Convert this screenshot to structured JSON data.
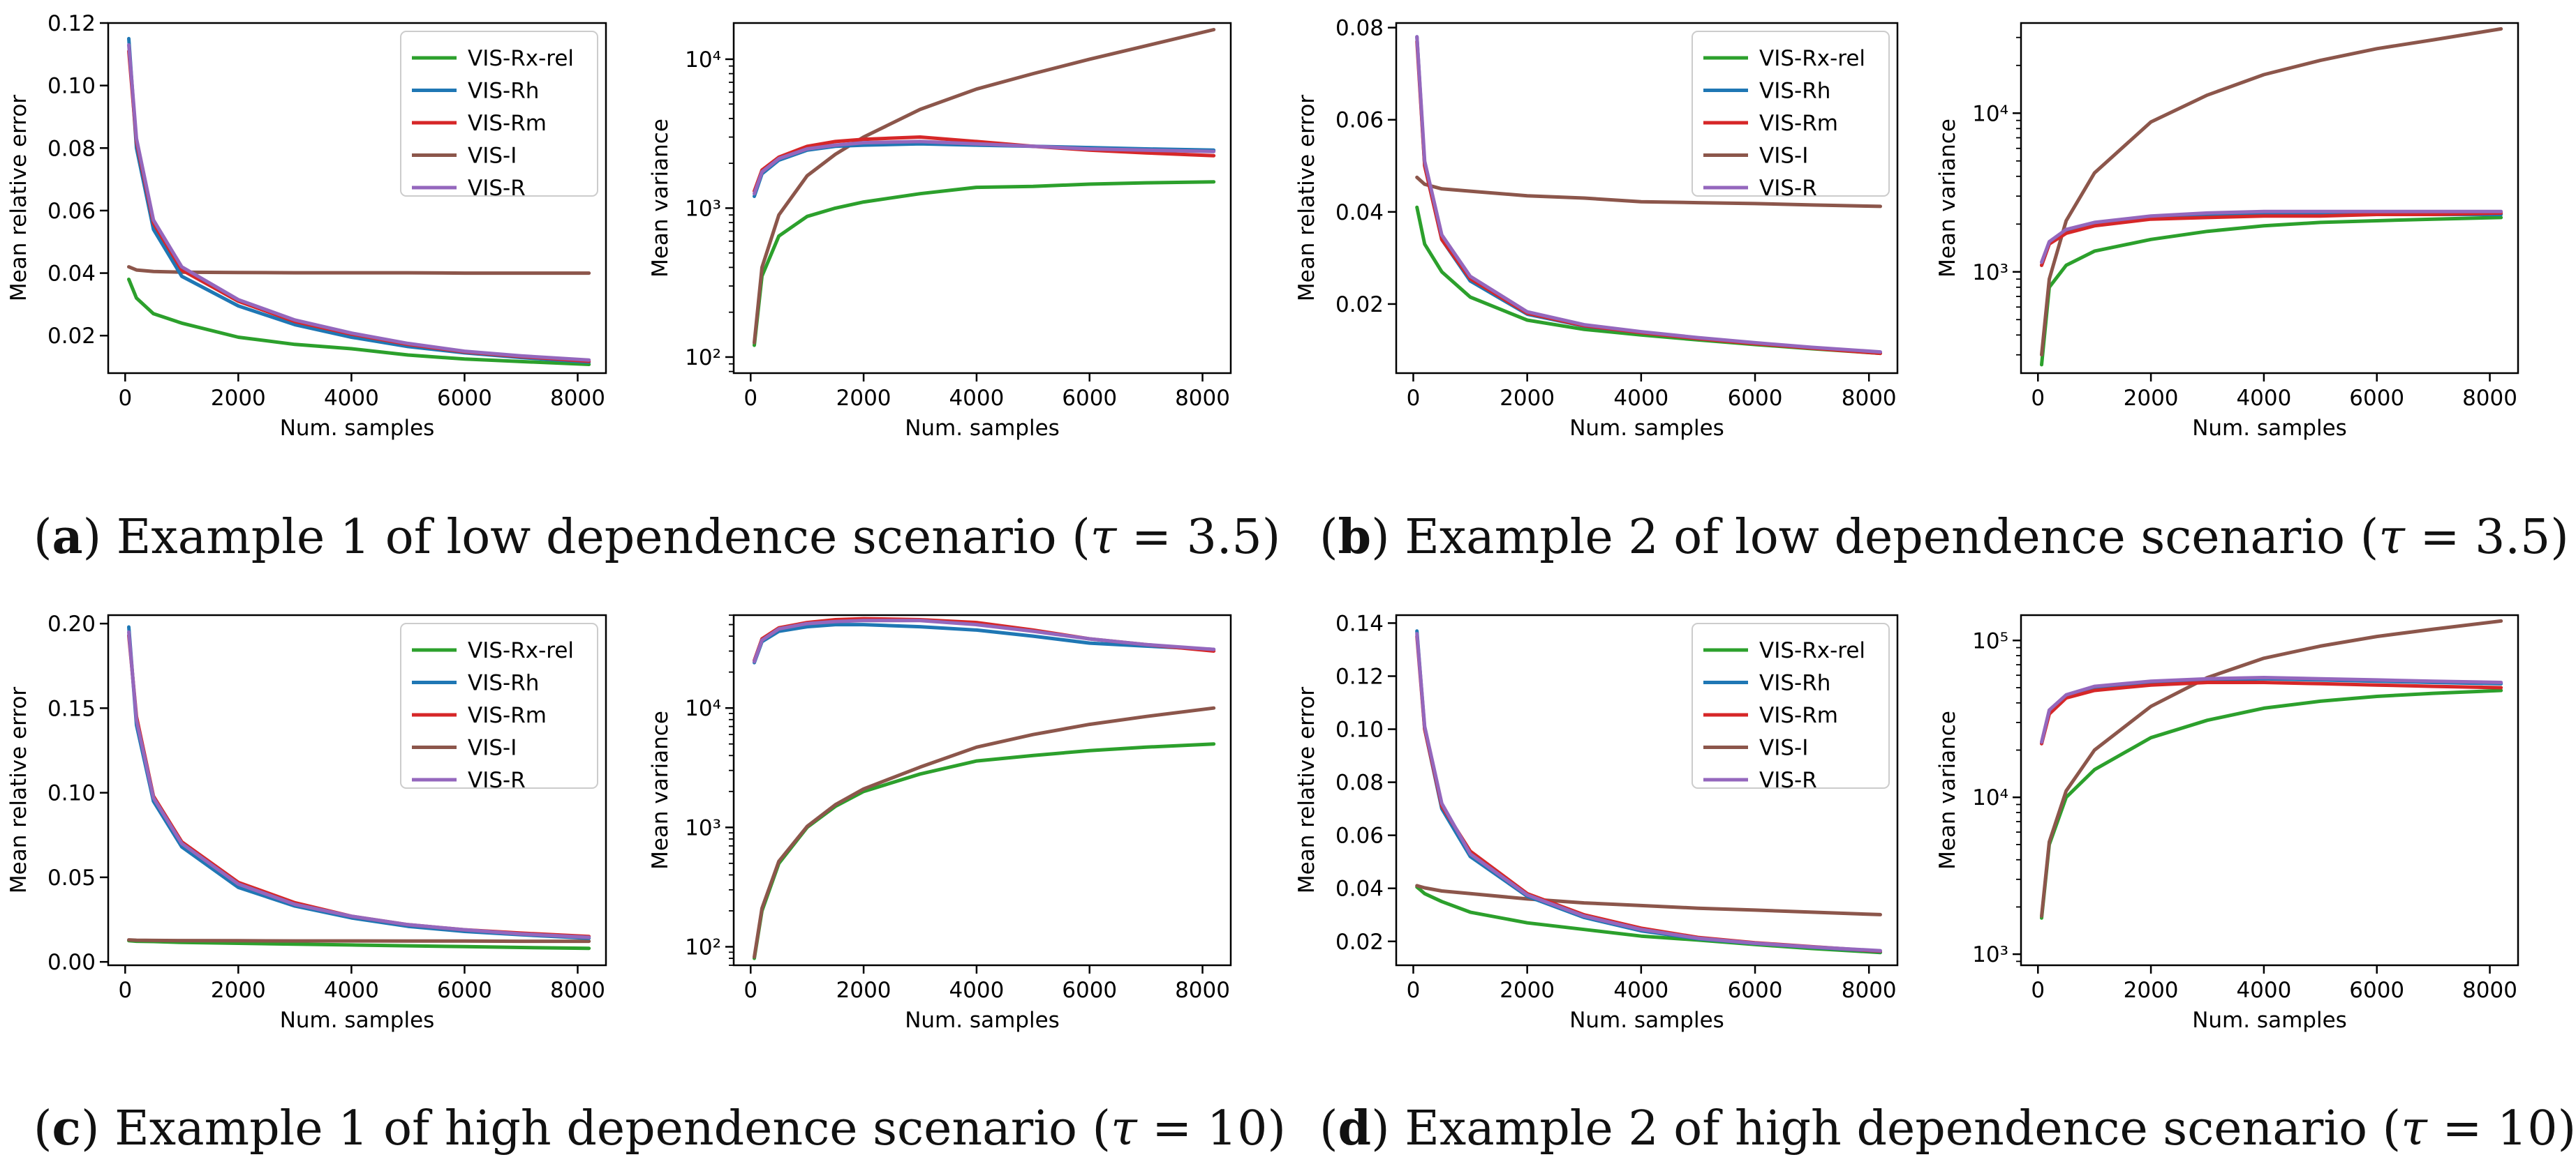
{
  "captions": [
    {
      "letter": "a",
      "prefix": "(",
      "close": ")",
      "text": " Example 1 of low dependence scenario (",
      "symbol": "τ",
      "value": " = 3.5)"
    },
    {
      "letter": "b",
      "prefix": "(",
      "close": ")",
      "text": " Example 2 of low dependence scenario (",
      "symbol": "τ",
      "value": " = 3.5)"
    },
    {
      "letter": "c",
      "prefix": "(",
      "close": ")",
      "text": " Example 1 of high dependence scenario (",
      "symbol": "τ",
      "value": " = 10)"
    },
    {
      "letter": "d",
      "prefix": "(",
      "close": ")",
      "text": " Example 2 of high dependence scenario (",
      "symbol": "τ",
      "value": " = 10)"
    }
  ],
  "series_style": [
    {
      "name": "VIS-Rx-rel",
      "color": "#2ca02c"
    },
    {
      "name": "VIS-Rh",
      "color": "#1f77b4"
    },
    {
      "name": "VIS-Rm",
      "color": "#d62728"
    },
    {
      "name": "VIS-I",
      "color": "#8c564b"
    },
    {
      "name": "VIS-R",
      "color": "#9467bd"
    }
  ],
  "chart_data": [
    {
      "id": "a-error",
      "type": "line",
      "xlabel": "Num. samples",
      "ylabel": "Mean relative error",
      "xlim": [
        -300,
        8500
      ],
      "xticks": [
        0,
        2000,
        4000,
        6000,
        8000
      ],
      "ylim": [
        0.008,
        0.12
      ],
      "yticks": [
        0.02,
        0.04,
        0.06,
        0.08,
        0.1,
        0.12
      ],
      "yticklabels": [
        "0.02",
        "0.04",
        "0.06",
        "0.08",
        "0.10",
        "0.12"
      ],
      "yscale": "linear",
      "legend": "top-right",
      "x": [
        64,
        200,
        500,
        1000,
        2000,
        3000,
        4000,
        5000,
        6000,
        7000,
        8200
      ],
      "series": [
        {
          "name": "VIS-Rx-rel",
          "values": [
            0.038,
            0.032,
            0.027,
            0.024,
            0.0195,
            0.0172,
            0.0158,
            0.0138,
            0.0125,
            0.0117,
            0.0108
          ]
        },
        {
          "name": "VIS-Rh",
          "values": [
            0.115,
            0.08,
            0.054,
            0.039,
            0.0295,
            0.0235,
            0.0195,
            0.0165,
            0.0145,
            0.013,
            0.0115
          ]
        },
        {
          "name": "VIS-Rm",
          "values": [
            0.111,
            0.082,
            0.056,
            0.041,
            0.031,
            0.0245,
            0.0205,
            0.0172,
            0.0148,
            0.0133,
            0.0118
          ]
        },
        {
          "name": "VIS-I",
          "values": [
            0.042,
            0.041,
            0.0405,
            0.0403,
            0.0402,
            0.0401,
            0.0401,
            0.0401,
            0.04,
            0.04,
            0.04
          ]
        },
        {
          "name": "VIS-R",
          "values": [
            0.113,
            0.083,
            0.057,
            0.042,
            0.0315,
            0.025,
            0.0208,
            0.0175,
            0.015,
            0.0135,
            0.0122
          ]
        }
      ]
    },
    {
      "id": "a-variance",
      "type": "line",
      "xlabel": "Num. samples",
      "ylabel": "Mean variance",
      "xlim": [
        -300,
        8500
      ],
      "xticks": [
        0,
        2000,
        4000,
        6000,
        8000
      ],
      "ylim": [
        78,
        17500
      ],
      "yticks": [
        100,
        1000,
        10000
      ],
      "yticklabels": [
        "10²",
        "10³",
        "10⁴"
      ],
      "yscale": "log",
      "x": [
        64,
        200,
        500,
        1000,
        1500,
        2000,
        3000,
        4000,
        5000,
        6000,
        7000,
        8200
      ],
      "series": [
        {
          "name": "VIS-Rx-rel",
          "values": [
            120,
            350,
            650,
            880,
            1000,
            1100,
            1250,
            1380,
            1400,
            1450,
            1480,
            1500
          ]
        },
        {
          "name": "VIS-Rh",
          "values": [
            1200,
            1700,
            2100,
            2450,
            2600,
            2650,
            2700,
            2650,
            2600,
            2550,
            2500,
            2450
          ]
        },
        {
          "name": "VIS-Rm",
          "values": [
            1300,
            1800,
            2200,
            2600,
            2800,
            2900,
            3000,
            2800,
            2600,
            2450,
            2350,
            2250
          ]
        },
        {
          "name": "VIS-I",
          "values": [
            125,
            400,
            900,
            1650,
            2300,
            3000,
            4600,
            6300,
            8000,
            10000,
            12300,
            15800
          ]
        },
        {
          "name": "VIS-R",
          "values": [
            1250,
            1750,
            2150,
            2500,
            2650,
            2750,
            2800,
            2700,
            2600,
            2500,
            2450,
            2400
          ]
        }
      ]
    },
    {
      "id": "b-error",
      "type": "line",
      "xlabel": "Num. samples",
      "ylabel": "Mean relative error",
      "xlim": [
        -300,
        8500
      ],
      "xticks": [
        0,
        2000,
        4000,
        6000,
        8000
      ],
      "ylim": [
        0.005,
        0.081
      ],
      "yticks": [
        0.02,
        0.04,
        0.06,
        0.08
      ],
      "yticklabels": [
        "0.02",
        "0.04",
        "0.06",
        "0.08"
      ],
      "yscale": "linear",
      "legend": "top-right",
      "x": [
        64,
        200,
        500,
        1000,
        2000,
        3000,
        4000,
        5000,
        6000,
        7000,
        8200
      ],
      "series": [
        {
          "name": "VIS-Rx-rel",
          "values": [
            0.041,
            0.033,
            0.027,
            0.0215,
            0.0165,
            0.0145,
            0.0133,
            0.0122,
            0.0112,
            0.0103,
            0.0093
          ]
        },
        {
          "name": "VIS-Rh",
          "values": [
            0.078,
            0.05,
            0.034,
            0.025,
            0.0178,
            0.0152,
            0.0138,
            0.0125,
            0.0115,
            0.0105,
            0.0095
          ]
        },
        {
          "name": "VIS-Rm",
          "values": [
            0.077,
            0.05,
            0.034,
            0.0255,
            0.018,
            0.0153,
            0.0138,
            0.0125,
            0.0114,
            0.0104,
            0.0093
          ]
        },
        {
          "name": "VIS-I",
          "values": [
            0.0475,
            0.046,
            0.045,
            0.0445,
            0.0435,
            0.043,
            0.0422,
            0.042,
            0.0418,
            0.0415,
            0.0412
          ]
        },
        {
          "name": "VIS-R",
          "values": [
            0.078,
            0.051,
            0.035,
            0.026,
            0.0183,
            0.0155,
            0.014,
            0.0127,
            0.0116,
            0.0106,
            0.0096
          ]
        }
      ]
    },
    {
      "id": "b-variance",
      "type": "line",
      "xlabel": "Num. samples",
      "ylabel": "Mean variance",
      "xlim": [
        -300,
        8500
      ],
      "xticks": [
        0,
        2000,
        4000,
        6000,
        8000
      ],
      "ylim": [
        230,
        37000
      ],
      "yticks": [
        1000,
        10000
      ],
      "yticklabels": [
        "10³",
        "10⁴"
      ],
      "yscale": "log",
      "x": [
        64,
        200,
        500,
        1000,
        2000,
        3000,
        4000,
        5000,
        6000,
        7000,
        8200
      ],
      "series": [
        {
          "name": "VIS-Rx-rel",
          "values": [
            260,
            800,
            1100,
            1350,
            1600,
            1800,
            1950,
            2050,
            2100,
            2150,
            2200
          ]
        },
        {
          "name": "VIS-Rh",
          "values": [
            1100,
            1500,
            1800,
            2000,
            2200,
            2250,
            2300,
            2300,
            2300,
            2300,
            2300
          ]
        },
        {
          "name": "VIS-Rm",
          "values": [
            1100,
            1500,
            1750,
            1950,
            2150,
            2200,
            2250,
            2250,
            2300,
            2300,
            2350
          ]
        },
        {
          "name": "VIS-I",
          "values": [
            300,
            900,
            2100,
            4200,
            8800,
            13000,
            17500,
            21500,
            25500,
            29000,
            34000
          ]
        },
        {
          "name": "VIS-R",
          "values": [
            1150,
            1550,
            1850,
            2050,
            2250,
            2350,
            2400,
            2400,
            2400,
            2400,
            2400
          ]
        }
      ]
    },
    {
      "id": "c-error",
      "type": "line",
      "xlabel": "Num. samples",
      "ylabel": "Mean relative error",
      "xlim": [
        -300,
        8500
      ],
      "xticks": [
        0,
        2000,
        4000,
        6000,
        8000
      ],
      "ylim": [
        -0.002,
        0.205
      ],
      "yticks": [
        0.0,
        0.05,
        0.1,
        0.15,
        0.2
      ],
      "yticklabels": [
        "0.00",
        "0.05",
        "0.10",
        "0.15",
        "0.20"
      ],
      "yscale": "linear",
      "legend": "top-right",
      "x": [
        64,
        200,
        500,
        1000,
        2000,
        3000,
        4000,
        5000,
        6000,
        7000,
        8200
      ],
      "series": [
        {
          "name": "VIS-Rx-rel",
          "values": [
            0.0125,
            0.0122,
            0.012,
            0.0115,
            0.011,
            0.0105,
            0.01,
            0.0095,
            0.009,
            0.0085,
            0.008
          ]
        },
        {
          "name": "VIS-Rh",
          "values": [
            0.198,
            0.14,
            0.095,
            0.068,
            0.044,
            0.033,
            0.026,
            0.021,
            0.018,
            0.016,
            0.014
          ]
        },
        {
          "name": "VIS-Rm",
          "values": [
            0.193,
            0.145,
            0.098,
            0.071,
            0.047,
            0.035,
            0.027,
            0.022,
            0.019,
            0.017,
            0.015
          ]
        },
        {
          "name": "VIS-I",
          "values": [
            0.013,
            0.0128,
            0.0127,
            0.0126,
            0.0125,
            0.0124,
            0.0124,
            0.0123,
            0.0123,
            0.0122,
            0.0122
          ]
        },
        {
          "name": "VIS-R",
          "values": [
            0.195,
            0.143,
            0.097,
            0.07,
            0.046,
            0.034,
            0.027,
            0.022,
            0.019,
            0.0165,
            0.0145
          ]
        }
      ]
    },
    {
      "id": "c-variance",
      "type": "line",
      "xlabel": "Num. samples",
      "ylabel": "Mean variance",
      "xlim": [
        -300,
        8500
      ],
      "xticks": [
        0,
        2000,
        4000,
        6000,
        8000
      ],
      "ylim": [
        70,
        60000
      ],
      "yticks": [
        100,
        1000,
        10000
      ],
      "yticklabels": [
        "10²",
        "10³",
        "10⁴"
      ],
      "yscale": "log",
      "x": [
        64,
        200,
        500,
        1000,
        1500,
        2000,
        3000,
        4000,
        5000,
        6000,
        7000,
        8200
      ],
      "series": [
        {
          "name": "VIS-Rx-rel",
          "values": [
            80,
            200,
            500,
            1000,
            1500,
            2000,
            2800,
            3600,
            4000,
            4400,
            4700,
            5000
          ]
        },
        {
          "name": "VIS-Rh",
          "values": [
            24000,
            36000,
            44000,
            48000,
            50000,
            50000,
            48000,
            45000,
            40000,
            35000,
            33000,
            31000
          ]
        },
        {
          "name": "VIS-Rm",
          "values": [
            25000,
            38000,
            47000,
            52000,
            55000,
            56000,
            55000,
            52000,
            45000,
            38000,
            34000,
            30000
          ]
        },
        {
          "name": "VIS-I",
          "values": [
            82,
            210,
            520,
            1020,
            1550,
            2100,
            3200,
            4700,
            6000,
            7300,
            8500,
            10000
          ]
        },
        {
          "name": "VIS-R",
          "values": [
            24500,
            37000,
            46000,
            51000,
            53000,
            54000,
            54000,
            50000,
            44000,
            38000,
            34000,
            31000
          ]
        }
      ]
    },
    {
      "id": "d-error",
      "type": "line",
      "xlabel": "Num. samples",
      "ylabel": "Mean relative error",
      "xlim": [
        -300,
        8500
      ],
      "xticks": [
        0,
        2000,
        4000,
        6000,
        8000
      ],
      "ylim": [
        0.011,
        0.143
      ],
      "yticks": [
        0.02,
        0.04,
        0.06,
        0.08,
        0.1,
        0.12,
        0.14
      ],
      "yticklabels": [
        "0.02",
        "0.04",
        "0.06",
        "0.08",
        "0.10",
        "0.12",
        "0.14"
      ],
      "yscale": "linear",
      "legend": "top-right",
      "x": [
        64,
        200,
        500,
        1000,
        2000,
        3000,
        4000,
        5000,
        6000,
        7000,
        8200
      ],
      "series": [
        {
          "name": "VIS-Rx-rel",
          "values": [
            0.0405,
            0.038,
            0.035,
            0.031,
            0.027,
            0.0245,
            0.022,
            0.0205,
            0.0188,
            0.0173,
            0.0158
          ]
        },
        {
          "name": "VIS-Rh",
          "values": [
            0.137,
            0.1,
            0.07,
            0.052,
            0.037,
            0.029,
            0.024,
            0.021,
            0.0192,
            0.0178,
            0.0162
          ]
        },
        {
          "name": "VIS-Rm",
          "values": [
            0.135,
            0.1,
            0.071,
            0.054,
            0.038,
            0.03,
            0.025,
            0.0215,
            0.0195,
            0.018,
            0.0163
          ]
        },
        {
          "name": "VIS-I",
          "values": [
            0.041,
            0.0402,
            0.039,
            0.038,
            0.036,
            0.0345,
            0.0335,
            0.0325,
            0.0318,
            0.031,
            0.0301
          ]
        },
        {
          "name": "VIS-R",
          "values": [
            0.136,
            0.101,
            0.072,
            0.053,
            0.0375,
            0.0295,
            0.0245,
            0.0212,
            0.0193,
            0.0179,
            0.0165
          ]
        }
      ]
    },
    {
      "id": "d-variance",
      "type": "line",
      "xlabel": "Num. samples",
      "ylabel": "Mean variance",
      "xlim": [
        -300,
        8500
      ],
      "xticks": [
        0,
        2000,
        4000,
        6000,
        8000
      ],
      "ylim": [
        850,
        145000
      ],
      "yticks": [
        1000,
        10000,
        100000
      ],
      "yticklabels": [
        "10³",
        "10⁴",
        "10⁵"
      ],
      "yscale": "log",
      "x": [
        64,
        200,
        500,
        1000,
        2000,
        3000,
        4000,
        5000,
        6000,
        7000,
        8200
      ],
      "series": [
        {
          "name": "VIS-Rx-rel",
          "values": [
            1700,
            5000,
            10000,
            15000,
            24000,
            31000,
            37000,
            41000,
            44000,
            46000,
            48000
          ]
        },
        {
          "name": "VIS-Rh",
          "values": [
            22000,
            35000,
            44000,
            50000,
            54000,
            56000,
            57000,
            56000,
            55000,
            54000,
            53000
          ]
        },
        {
          "name": "VIS-Rm",
          "values": [
            22000,
            34000,
            43000,
            48000,
            52000,
            54000,
            54000,
            53000,
            52000,
            51000,
            50000
          ]
        },
        {
          "name": "VIS-I",
          "values": [
            1750,
            5200,
            11000,
            20000,
            38000,
            58000,
            77000,
            92000,
            106000,
            118000,
            133000
          ]
        },
        {
          "name": "VIS-R",
          "values": [
            22500,
            36000,
            45000,
            51000,
            55000,
            57000,
            58000,
            57000,
            56000,
            55000,
            54000
          ]
        }
      ]
    }
  ]
}
